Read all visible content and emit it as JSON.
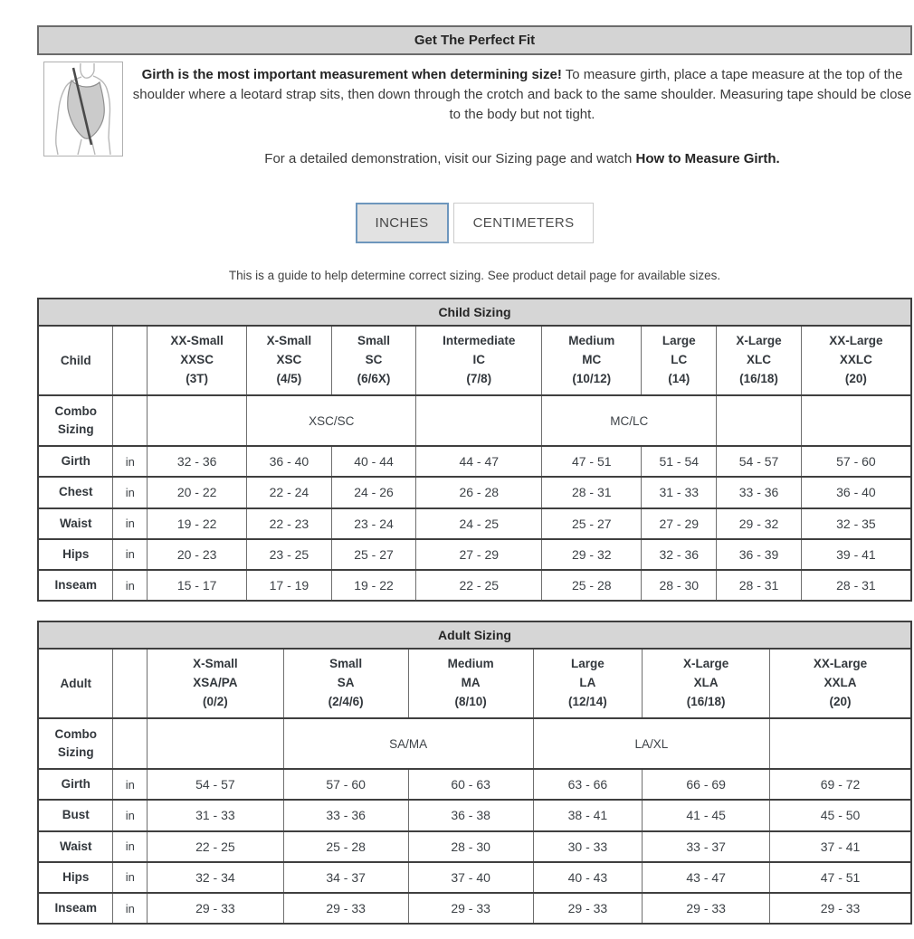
{
  "colors": {
    "accent_blue": "#6d96bd",
    "title_bar_gray": "#d4d4d4",
    "table_header_gray": "#d6d6d6",
    "border_dark": "#3f3f3f",
    "text_dark": "#3d4247"
  },
  "header": {
    "title": "Get The Perfect Fit"
  },
  "illustration": {
    "icon": "leotard-girth-diagram"
  },
  "intro": {
    "bold": "Girth is the most important measurement when determining size!",
    "text": " To measure girth, place a tape measure at the top of the shoulder where a leotard strap sits, then down through the crotch and back to the same shoulder. Measuring tape should be close to the body but not tight."
  },
  "demo": {
    "text": "For a detailed demonstration, visit our Sizing page and watch ",
    "bold": "How to Measure Girth."
  },
  "unit_toggle": {
    "inches_label": "INCHES",
    "centimeters_label": "CENTIMETERS",
    "selected": "INCHES"
  },
  "note": "This is a guide to help determine correct sizing. See product detail page for available sizes.",
  "child_table": {
    "title": "Child Sizing",
    "row_label": "Child",
    "columns": [
      {
        "lines": [
          "XX-Small",
          "XXSC",
          "(3T)"
        ]
      },
      {
        "lines": [
          "X-Small",
          "XSC",
          "(4/5)"
        ]
      },
      {
        "lines": [
          "Small",
          "SC",
          "(6/6X)"
        ]
      },
      {
        "lines": [
          "Intermediate",
          "IC",
          "(7/8)"
        ]
      },
      {
        "lines": [
          "Medium",
          "MC",
          "(10/12)"
        ]
      },
      {
        "lines": [
          "Large",
          "LC",
          "(14)"
        ]
      },
      {
        "lines": [
          "X-Large",
          "XLC",
          "(16/18)"
        ]
      },
      {
        "lines": [
          "XX-Large",
          "XXLC",
          "(20)"
        ]
      }
    ],
    "combo": {
      "label": "Combo Sizing",
      "cells": [
        {
          "span": 1,
          "text": ""
        },
        {
          "span": 2,
          "text": "XSC/SC"
        },
        {
          "span": 1,
          "text": ""
        },
        {
          "span": 2,
          "text": "MC/LC"
        },
        {
          "span": 1,
          "text": ""
        },
        {
          "span": 1,
          "text": ""
        }
      ]
    },
    "rows": [
      {
        "label": "Girth",
        "unit": "in",
        "values": [
          "32 - 36",
          "36 - 40",
          "40 - 44",
          "44 - 47",
          "47 - 51",
          "51 - 54",
          "54 - 57",
          "57 - 60"
        ]
      },
      {
        "label": "Chest",
        "unit": "in",
        "values": [
          "20 - 22",
          "22 - 24",
          "24 - 26",
          "26 - 28",
          "28 - 31",
          "31 - 33",
          "33 - 36",
          "36 - 40"
        ]
      },
      {
        "label": "Waist",
        "unit": "in",
        "values": [
          "19 - 22",
          "22 - 23",
          "23 - 24",
          "24 - 25",
          "25 - 27",
          "27 - 29",
          "29 - 32",
          "32 - 35"
        ]
      },
      {
        "label": "Hips",
        "unit": "in",
        "values": [
          "20 - 23",
          "23 - 25",
          "25 - 27",
          "27 - 29",
          "29 - 32",
          "32 - 36",
          "36 - 39",
          "39 - 41"
        ]
      },
      {
        "label": "Inseam",
        "unit": "in",
        "values": [
          "15 - 17",
          "17 - 19",
          "19 - 22",
          "22 - 25",
          "25 - 28",
          "28 - 30",
          "28 - 31",
          "28 - 31"
        ]
      }
    ]
  },
  "adult_table": {
    "title": "Adult Sizing",
    "row_label": "Adult",
    "columns": [
      {
        "lines": [
          "X-Small",
          "XSA/PA",
          "(0/2)"
        ]
      },
      {
        "lines": [
          "Small",
          "SA",
          "(2/4/6)"
        ]
      },
      {
        "lines": [
          "Medium",
          "MA",
          "(8/10)"
        ]
      },
      {
        "lines": [
          "Large",
          "LA",
          "(12/14)"
        ]
      },
      {
        "lines": [
          "X-Large",
          "XLA",
          "(16/18)"
        ]
      },
      {
        "lines": [
          "XX-Large",
          "XXLA",
          "(20)"
        ]
      }
    ],
    "combo": {
      "label": "Combo Sizing",
      "cells": [
        {
          "span": 1,
          "text": ""
        },
        {
          "span": 2,
          "text": "SA/MA"
        },
        {
          "span": 2,
          "text": "LA/XL"
        },
        {
          "span": 1,
          "text": ""
        }
      ]
    },
    "rows": [
      {
        "label": "Girth",
        "unit": "in",
        "values": [
          "54 - 57",
          "57 - 60",
          "60 - 63",
          "63 - 66",
          "66 - 69",
          "69 - 72"
        ]
      },
      {
        "label": "Bust",
        "unit": "in",
        "values": [
          "31 - 33",
          "33 - 36",
          "36 - 38",
          "38 - 41",
          "41 - 45",
          "45 - 50"
        ]
      },
      {
        "label": "Waist",
        "unit": "in",
        "values": [
          "22 - 25",
          "25 - 28",
          "28 - 30",
          "30 - 33",
          "33 - 37",
          "37 - 41"
        ]
      },
      {
        "label": "Hips",
        "unit": "in",
        "values": [
          "32 - 34",
          "34 - 37",
          "37 - 40",
          "40 - 43",
          "43 - 47",
          "47 - 51"
        ]
      },
      {
        "label": "Inseam",
        "unit": "in",
        "values": [
          "29 - 33",
          "29 - 33",
          "29 - 33",
          "29 - 33",
          "29 - 33",
          "29 - 33"
        ]
      }
    ]
  }
}
